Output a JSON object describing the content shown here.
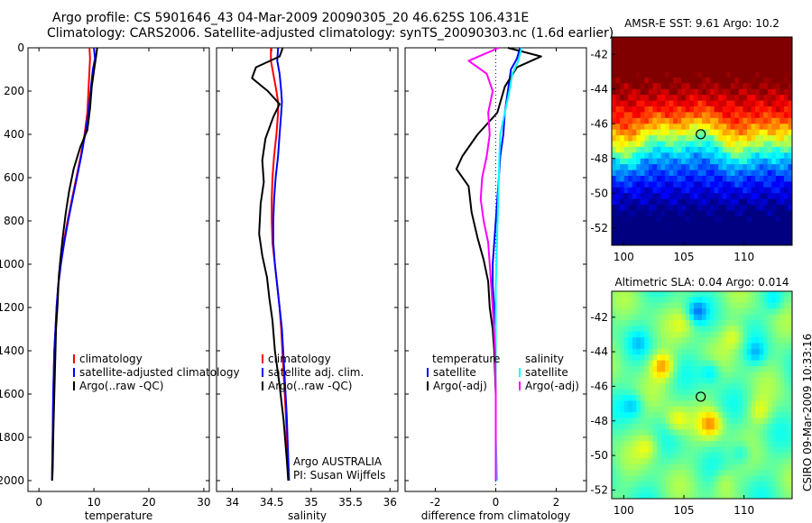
{
  "title_line1": "Argo profile: CS 5901646_43 04-Mar-2009 20090305_20 46.625S 106.431E",
  "title_line2": "Climatology: CARS2006. Satellite-adjusted climatology: synTS_20090303.nc (1.6d earlier)",
  "side_credit": "CSIRO 09-Mar-2009 10:33:16",
  "chart_data": [
    {
      "type": "line",
      "name": "temperature-panel",
      "xlabel": "temperature",
      "xlim": [
        -2,
        31
      ],
      "ylim": [
        2050,
        0
      ],
      "xticks": [
        0,
        10,
        20,
        30
      ],
      "yticks": [
        0,
        200,
        400,
        600,
        800,
        1000,
        1200,
        1400,
        1600,
        1800,
        2000
      ],
      "legend": [
        "climatology",
        "satellite-adjusted climatology",
        "Argo(..raw -QC)"
      ],
      "legend_position": "lower-right",
      "series": [
        {
          "name": "climatology",
          "color": "#ff0000",
          "width": 2,
          "x": [
            9.2,
            9.3,
            9.2,
            9.0,
            8.8,
            8.3,
            7.6,
            6.8,
            6.0,
            5.2,
            4.5,
            3.9,
            3.5,
            3.2,
            3.0,
            2.8,
            2.6,
            2.5,
            2.4,
            2.4
          ],
          "y": [
            0,
            50,
            100,
            200,
            300,
            400,
            500,
            600,
            700,
            800,
            900,
            1000,
            1100,
            1200,
            1300,
            1400,
            1600,
            1800,
            1950,
            2000
          ]
        },
        {
          "name": "satellite-adjusted climatology",
          "color": "#0000ff",
          "width": 2,
          "x": [
            10.0,
            10.2,
            9.8,
            9.4,
            9.0,
            8.4,
            7.7,
            6.9,
            6.1,
            5.3,
            4.6,
            4.0,
            3.5,
            3.2,
            3.0,
            2.8,
            2.6,
            2.5,
            2.4,
            2.4
          ],
          "y": [
            0,
            50,
            100,
            200,
            300,
            400,
            500,
            600,
            700,
            800,
            900,
            1000,
            1100,
            1200,
            1300,
            1400,
            1600,
            1800,
            1950,
            2000
          ]
        },
        {
          "name": "Argo(..raw -QC)",
          "color": "#000000",
          "width": 2,
          "x": [
            10.6,
            10.4,
            10.1,
            9.6,
            9.3,
            8.8,
            7.5,
            6.3,
            5.5,
            4.9,
            4.3,
            3.9,
            3.6,
            3.4,
            3.1,
            3.0,
            2.8,
            2.6,
            2.5,
            2.4
          ],
          "y": [
            0,
            40,
            90,
            180,
            280,
            380,
            460,
            560,
            660,
            760,
            880,
            980,
            1060,
            1180,
            1300,
            1400,
            1600,
            1800,
            1950,
            2000
          ]
        }
      ]
    },
    {
      "type": "line",
      "name": "salinity-panel",
      "xlabel": "salinity",
      "xlim": [
        33.8,
        36.1
      ],
      "ylim": [
        2050,
        0
      ],
      "xticks": [
        34,
        34.5,
        35,
        35.5,
        36
      ],
      "xticklabels": [
        "34",
        "34.5",
        "35",
        "35.5",
        "36"
      ],
      "legend": [
        "climatology",
        "satellite adj. clim.",
        "Argo(..raw -QC)"
      ],
      "legend_position": "lower-right",
      "annotation": [
        "Argo AUSTRALIA",
        "PI: Susan Wijffels"
      ],
      "series": [
        {
          "name": "climatology",
          "color": "#ff0000",
          "width": 2,
          "x": [
            34.49,
            34.49,
            34.52,
            34.56,
            34.58,
            34.58,
            34.56,
            34.53,
            34.51,
            34.5,
            34.5,
            34.51,
            34.54,
            34.57,
            34.6,
            34.62,
            34.65,
            34.68,
            34.7,
            34.71
          ],
          "y": [
            0,
            60,
            120,
            200,
            250,
            300,
            400,
            500,
            600,
            700,
            800,
            900,
            1000,
            1100,
            1200,
            1300,
            1500,
            1700,
            1900,
            2000
          ]
        },
        {
          "name": "satellite adj. clim.",
          "color": "#0000ff",
          "width": 2,
          "x": [
            34.58,
            34.57,
            34.6,
            34.62,
            34.63,
            34.62,
            34.6,
            34.58,
            34.55,
            34.53,
            34.52,
            34.52,
            34.54,
            34.57,
            34.6,
            34.63,
            34.66,
            34.69,
            34.71,
            34.72
          ],
          "y": [
            0,
            60,
            120,
            200,
            250,
            300,
            400,
            500,
            600,
            700,
            800,
            900,
            1000,
            1100,
            1200,
            1300,
            1500,
            1700,
            1900,
            2000
          ]
        },
        {
          "name": "Argo(..raw -QC)",
          "color": "#000000",
          "width": 2,
          "x": [
            34.64,
            34.6,
            34.3,
            34.25,
            34.45,
            34.6,
            34.52,
            34.42,
            34.38,
            34.4,
            34.36,
            34.34,
            34.38,
            34.44,
            34.47,
            34.51,
            34.54,
            34.6,
            34.65,
            34.69,
            34.71
          ],
          "y": [
            0,
            40,
            90,
            140,
            200,
            260,
            320,
            420,
            520,
            620,
            720,
            860,
            960,
            1060,
            1160,
            1260,
            1400,
            1560,
            1720,
            1900,
            2000
          ]
        }
      ]
    },
    {
      "type": "line",
      "name": "difference-panel",
      "xlabel": "difference from climatology",
      "xlim": [
        -3,
        3
      ],
      "ylim": [
        2050,
        0
      ],
      "xticks": [
        -2,
        0,
        2
      ],
      "legend_left_title": "temperature",
      "legend_right_title": "salinity",
      "legend_left": [
        "satellite",
        "Argo(-adj)"
      ],
      "legend_right": [
        "satellite",
        "Argo(-adj)"
      ],
      "legend_position": "lower-center",
      "series": [
        {
          "name": "temperature satellite",
          "color": "#0000ff",
          "width": 2,
          "x": [
            0.8,
            0.7,
            0.5,
            0.4,
            0.3,
            0.25,
            0.15,
            0.1,
            0.05,
            0.0,
            -0.05,
            -0.1,
            -0.1,
            -0.05,
            0.0,
            0.0,
            0.0,
            0.0,
            0.0
          ],
          "y": [
            0,
            50,
            100,
            200,
            300,
            400,
            500,
            600,
            700,
            800,
            900,
            1000,
            1100,
            1200,
            1300,
            1400,
            1600,
            1800,
            2000
          ]
        },
        {
          "name": "temperature Argo(-adj)",
          "color": "#000000",
          "width": 2,
          "x": [
            0.4,
            1.5,
            0.7,
            0.3,
            0.05,
            -0.6,
            -1.1,
            -1.3,
            -0.9,
            -0.8,
            -0.6,
            -0.4,
            -0.25,
            -0.2,
            -0.1,
            -0.05,
            0.0,
            0.0,
            0.0
          ],
          "y": [
            0,
            40,
            90,
            180,
            300,
            400,
            500,
            560,
            640,
            760,
            880,
            980,
            1080,
            1200,
            1300,
            1400,
            1600,
            1800,
            2000
          ]
        },
        {
          "name": "salinity satellite",
          "color": "#00ffff",
          "width": 2,
          "x": [
            0.85,
            0.75,
            0.55,
            0.45,
            0.3,
            0.15,
            0.12,
            0.1,
            0.08,
            0.06,
            0.04,
            0.02,
            0.0,
            0.0,
            0.0,
            0.0,
            0.0,
            0.0,
            0.05
          ],
          "y": [
            0,
            60,
            120,
            200,
            300,
            400,
            500,
            600,
            700,
            800,
            900,
            1000,
            1100,
            1200,
            1300,
            1400,
            1600,
            1800,
            2000
          ]
        },
        {
          "name": "salinity Argo(-adj)",
          "color": "#ff00ff",
          "width": 2,
          "x": [
            0.1,
            -0.9,
            -0.3,
            -0.1,
            -0.25,
            -0.2,
            -0.3,
            -0.45,
            -0.5,
            -0.4,
            -0.25,
            -0.2,
            -0.15,
            -0.1,
            -0.06,
            -0.02,
            0.0,
            0.0,
            0.0
          ],
          "y": [
            0,
            60,
            120,
            200,
            300,
            400,
            500,
            600,
            700,
            800,
            900,
            1000,
            1100,
            1200,
            1300,
            1400,
            1600,
            1800,
            2000
          ]
        }
      ]
    },
    {
      "type": "heatmap",
      "name": "sst-map",
      "title": "AMSR-E SST: 9.61 Argo: 10.2",
      "xlim": [
        99,
        114
      ],
      "ylim": [
        -53,
        -41
      ],
      "xticks": [
        100,
        105,
        110
      ],
      "yticks": [
        -42,
        -44,
        -46,
        -48,
        -50,
        -52
      ],
      "marker": {
        "lon": 106.4,
        "lat": -46.6
      },
      "palette": "jet",
      "grid_cols": 44,
      "grid_rows": 36
    },
    {
      "type": "heatmap",
      "name": "sla-map",
      "title": "Altimetric SLA: 0.04 Argo: 0.014",
      "xlim": [
        99,
        114
      ],
      "ylim": [
        -52.5,
        -40.5
      ],
      "xticks": [
        100,
        105,
        110
      ],
      "yticks": [
        -42,
        -44,
        -46,
        -48,
        -50,
        -52
      ],
      "marker": {
        "lon": 106.4,
        "lat": -46.6
      },
      "palette": "jet",
      "grid_cols": 44,
      "grid_rows": 36
    }
  ]
}
